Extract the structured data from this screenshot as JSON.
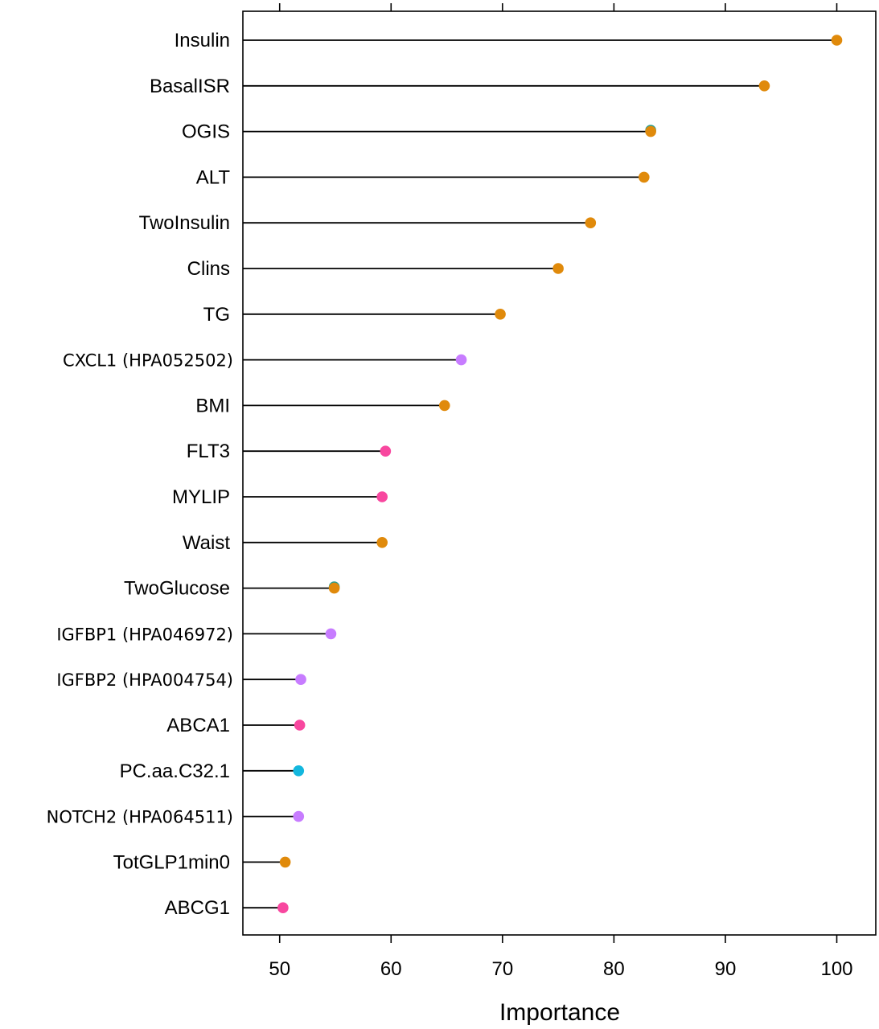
{
  "chart_data": {
    "type": "scatter",
    "subtype": "lollipop",
    "title": "",
    "xlabel": "Importance",
    "ylabel": "",
    "xlim": [
      46.7,
      103.5
    ],
    "x_ticks": [
      50,
      60,
      70,
      80,
      90,
      100
    ],
    "x_tick_labels": [
      "50",
      "60",
      "70",
      "80",
      "90",
      "100"
    ],
    "grid": false,
    "legend": "none",
    "colors": {
      "orange": "#e08a0b",
      "purple": "#c77cff",
      "pink": "#f8479f",
      "cyan": "#13b7de",
      "teal": "#2a9d8f"
    },
    "categories": [
      "Insulin",
      "BasalISR",
      "OGIS",
      "ALT",
      "TwoInsulin",
      "Clins",
      "TG",
      "CXCL1 (HPA052502)",
      "BMI",
      "FLT3",
      "MYLIP",
      "Waist",
      "TwoGlucose",
      "IGFBP1 (HPA046972)",
      "IGFBP2 (HPA004754)",
      "ABCA1",
      "PC.aa.C32.1",
      "NOTCH2 (HPA064511)",
      "TotGLP1min0",
      "ABCG1"
    ],
    "values": [
      100,
      93.5,
      83.3,
      82.7,
      77.9,
      75.0,
      69.8,
      66.3,
      64.8,
      59.5,
      59.2,
      59.2,
      54.9,
      54.6,
      51.9,
      51.8,
      51.7,
      51.7,
      50.5,
      50.3
    ],
    "point_colors": [
      "orange",
      "orange",
      "orange",
      "orange",
      "orange",
      "orange",
      "orange",
      "purple",
      "orange",
      "pink",
      "pink",
      "orange",
      "orange",
      "purple",
      "purple",
      "pink",
      "cyan",
      "purple",
      "orange",
      "pink"
    ],
    "overlap_markers": [
      {
        "category": "OGIS",
        "value": 83.3,
        "color": "teal"
      },
      {
        "category": "TwoGlucose",
        "value": 54.9,
        "color": "teal"
      }
    ]
  }
}
